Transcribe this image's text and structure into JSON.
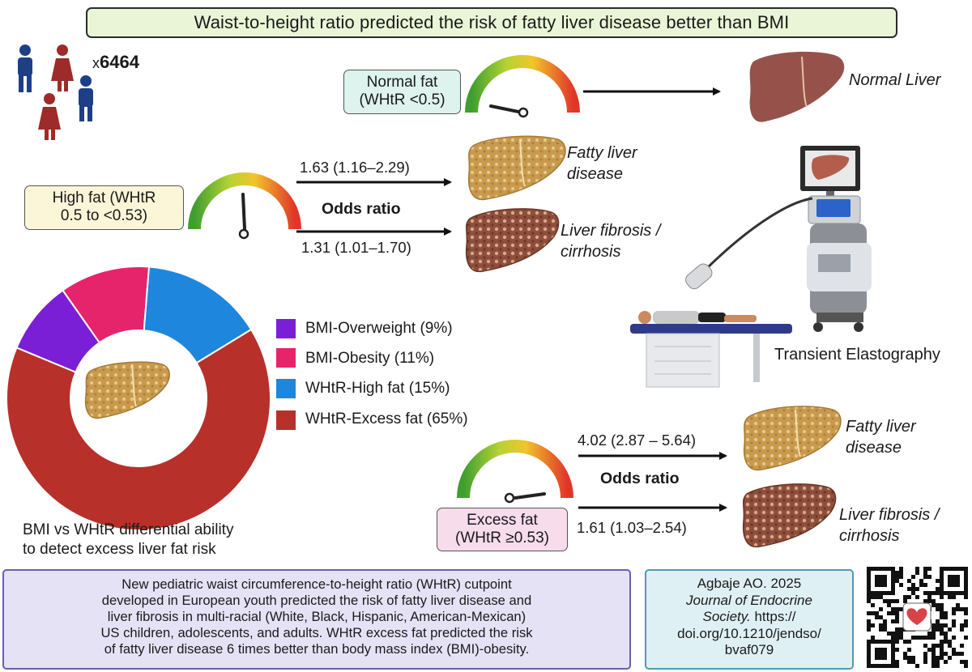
{
  "title": "Waist-to-height ratio predicted the risk of fatty liver disease better than BMI",
  "participants": {
    "prefix": "x",
    "count": "6464"
  },
  "normal": {
    "label_line1": "Normal fat",
    "label_line2": "(WHtR <0.5)",
    "outcome": "Normal Liver"
  },
  "high": {
    "label_line1": "High fat (WHtR",
    "label_line2": "0.5 to <0.53)",
    "odds_label": "Odds ratio",
    "fatty_or": "1.63 (1.16–2.29)",
    "fibrosis_or": "1.31 (1.01–1.70)",
    "fatty_line1": "Fatty liver",
    "fatty_line2": "disease",
    "fibrosis_line1": "Liver fibrosis /",
    "fibrosis_line2": "cirrhosis"
  },
  "excess": {
    "label_line1": "Excess fat",
    "label_line2": "(WHtR ≥0.53)",
    "odds_label": "Odds ratio",
    "fatty_or": "4.02 (2.87 – 5.64)",
    "fibrosis_or": "1.61 (1.03–2.54)",
    "fatty_line1": "Fatty liver",
    "fatty_line2": "disease",
    "fibrosis_line1": "Liver fibrosis /",
    "fibrosis_line2": "cirrhosis"
  },
  "elastography_label": "Transient Elastography",
  "chart_data": {
    "type": "pie",
    "variant": "donut",
    "categories": [
      "BMI-Overweight (9%)",
      "BMI-Obesity (11%)",
      "WHtR-High fat (15%)",
      "WHtR-Excess fat (65%)"
    ],
    "values": [
      9,
      11,
      15,
      65
    ],
    "colors": [
      "#7b1fd6",
      "#e5246b",
      "#1e86dd",
      "#b8302a"
    ],
    "caption_line1": "BMI vs WHtR differential ability",
    "caption_line2": "to detect excess liver fat risk"
  },
  "summary_lines": [
    "New pediatric waist circumference-to-height ratio (WHtR) cutpoint",
    "developed in European youth predicted the risk of fatty liver disease and",
    "liver fibrosis in multi-racial (White, Black, Hispanic, American-Mexican)",
    "US children, adolescents, and adults. WHtR excess fat predicted the risk",
    "of fatty liver disease 6 times better than body mass index (BMI)-obesity."
  ],
  "citation": {
    "author": "Agbaje AO. 2025",
    "journal_line1": "Journal of Endocrine",
    "journal_line2": "Society.",
    "url_part1": " https://",
    "url_part2": "doi.org/10.1210/jendso/",
    "url_part3": "bvaf079"
  },
  "colors": {
    "title_bg": "#eaf5d7",
    "normal_bg": "#def2ee",
    "high_bg": "#fbf6d8",
    "excess_bg": "#f7dcec",
    "male": "#1d3f88",
    "female": "#9e2a2a",
    "normal_liver": "#96524a",
    "fatty_liver": "#c89a4e",
    "fibrotic_liver": "#8d4f3b"
  }
}
